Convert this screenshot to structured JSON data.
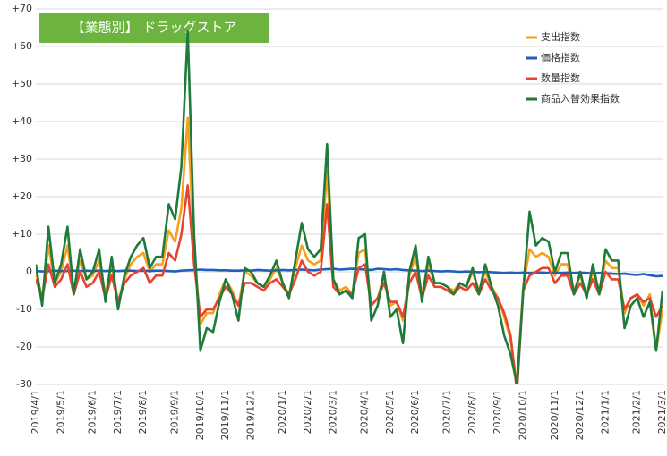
{
  "chart_data": {
    "type": "line",
    "title": "【業態別】 ドラッグストア",
    "categories": [
      "2019/4/1",
      null,
      null,
      null,
      "2019/5/1",
      null,
      null,
      null,
      null,
      "2019/6/1",
      null,
      null,
      null,
      "2019/7/1",
      null,
      null,
      null,
      "2019/8/1",
      null,
      null,
      null,
      null,
      "2019/9/1",
      null,
      null,
      null,
      "2019/10/1",
      null,
      null,
      null,
      "2019/11/1",
      null,
      null,
      null,
      "2019/12/1",
      null,
      null,
      null,
      null,
      "2020/1/1",
      null,
      null,
      null,
      "2020/2/1",
      null,
      null,
      null,
      "2020/3/1",
      null,
      null,
      null,
      null,
      "2020/4/1",
      null,
      null,
      null,
      "2020/5/1",
      null,
      null,
      null,
      "2020/6/1",
      null,
      null,
      null,
      null,
      "2020/7/1",
      null,
      null,
      null,
      "2020/8/1",
      null,
      null,
      null,
      "2020/9/1",
      null,
      null,
      null,
      "2020/10/1",
      null,
      null,
      null,
      null,
      "2020/11/1",
      null,
      null,
      null,
      "2020/12/1",
      null,
      null,
      null,
      "2021/1/1",
      null,
      null,
      null,
      null,
      "2021/2/1",
      null,
      null,
      null,
      "2021/3/1"
    ],
    "series": [
      {
        "name": "支出指数",
        "color": "#f5a11c",
        "values": [
          0,
          -7,
          7,
          -3,
          0,
          7,
          -5,
          3,
          -2,
          -1,
          3,
          -6,
          2,
          -8,
          -2,
          2,
          4,
          5,
          0,
          2,
          2,
          11,
          8,
          17,
          41,
          6,
          -14,
          -11,
          -11,
          -6,
          -2,
          -5,
          -9,
          0,
          -1,
          -3,
          -4,
          -2,
          1,
          -3,
          -6,
          1,
          7,
          3,
          2,
          3,
          27,
          -2,
          -5,
          -4,
          -6,
          5,
          6,
          -9,
          -7,
          -1,
          -9,
          -8,
          -13,
          -1,
          4,
          -6,
          2,
          -3,
          -3,
          -4,
          -5,
          -3,
          -4,
          0,
          -5,
          0,
          -4,
          -7,
          -12,
          -18,
          -30,
          -4,
          6,
          4,
          5,
          4,
          -1,
          2,
          2,
          -5,
          -1,
          -6,
          0,
          -5,
          3,
          1,
          1,
          -11,
          -7,
          -6,
          -9,
          -6,
          -21,
          -10
        ]
      },
      {
        "name": "価格指数",
        "color": "#1f5fbf",
        "values": [
          0.2,
          0.1,
          0.2,
          0.3,
          0.2,
          0.2,
          0.3,
          0.2,
          0.3,
          0.2,
          0.3,
          0.2,
          0.3,
          0.2,
          0.3,
          0.3,
          0.2,
          0.3,
          0.2,
          0.3,
          0.3,
          0.2,
          0.1,
          0.3,
          0.4,
          0.5,
          0.6,
          0.5,
          0.5,
          0.4,
          0.4,
          0.3,
          0.3,
          0.4,
          0.3,
          0.5,
          0.4,
          0.3,
          0.4,
          0.5,
          0.4,
          0.5,
          0.6,
          0.5,
          0.4,
          0.6,
          0.7,
          0.8,
          0.6,
          0.7,
          0.8,
          0.7,
          0.6,
          0.5,
          0.8,
          0.7,
          0.6,
          0.7,
          0.5,
          0.4,
          0.3,
          0.2,
          0.3,
          0.2,
          0.1,
          0.2,
          0.1,
          0.0,
          0.1,
          0.0,
          -0.1,
          0.0,
          -0.1,
          -0.2,
          -0.3,
          -0.2,
          -0.3,
          -0.2,
          -0.3,
          -0.2,
          -0.2,
          -0.3,
          -0.2,
          -0.3,
          -0.2,
          -0.3,
          -0.2,
          -0.3,
          -0.4,
          -0.3,
          -0.4,
          -0.5,
          -0.6,
          -0.5,
          -0.7,
          -0.8,
          -0.6,
          -0.9,
          -1.2,
          -1.1
        ]
      },
      {
        "name": "数量指数",
        "color": "#e8432e",
        "values": [
          -2,
          -7,
          2,
          -4,
          -2,
          2,
          -6,
          0,
          -4,
          -3,
          0,
          -7,
          -1,
          -8,
          -3,
          -1,
          0,
          1,
          -3,
          -1,
          -1,
          5,
          3,
          10,
          23,
          2,
          -12,
          -10,
          -10,
          -7,
          -4,
          -6,
          -9,
          -3,
          -3,
          -4,
          -5,
          -3,
          -2,
          -4,
          -6,
          -2,
          3,
          0,
          -1,
          0,
          18,
          -4,
          -6,
          -5,
          -6,
          1,
          2,
          -9,
          -7,
          -3,
          -8,
          -8,
          -12,
          -3,
          0,
          -7,
          -1,
          -4,
          -4,
          -5,
          -6,
          -4,
          -5,
          -3,
          -6,
          -2,
          -5,
          -7,
          -11,
          -17,
          -32,
          -5,
          -1,
          0,
          1,
          1,
          -3,
          -1,
          -1,
          -6,
          -3,
          -6,
          -2,
          -6,
          0,
          -2,
          -2,
          -10,
          -7,
          -6,
          -8,
          -7,
          -12,
          -9
        ]
      },
      {
        "name": "商品入替効果指数",
        "color": "#1e7b3c",
        "values": [
          2,
          -9,
          12,
          -3,
          2,
          12,
          -6,
          6,
          -2,
          0,
          6,
          -8,
          4,
          -10,
          -1,
          4,
          7,
          9,
          1,
          4,
          4,
          18,
          14,
          28,
          64,
          10,
          -21,
          -15,
          -16,
          -8,
          -2,
          -6,
          -13,
          1,
          0,
          -3,
          -4,
          -1,
          3,
          -3,
          -7,
          3,
          13,
          6,
          4,
          6,
          34,
          -2,
          -6,
          -5,
          -7,
          9,
          10,
          -13,
          -9,
          0,
          -12,
          -10,
          -19,
          0,
          7,
          -8,
          4,
          -3,
          -3,
          -4,
          -6,
          -3,
          -4,
          1,
          -6,
          2,
          -4,
          -9,
          -17,
          -22,
          -30,
          -5,
          16,
          7,
          9,
          8,
          0,
          5,
          5,
          -6,
          0,
          -7,
          2,
          -6,
          6,
          3,
          3,
          -15,
          -9,
          -7,
          -12,
          -8,
          -21,
          -5
        ]
      }
    ],
    "ylim": [
      -30,
      70
    ],
    "yticks": [
      {
        "value": 70,
        "label": "+70"
      },
      {
        "value": 60,
        "label": "+60"
      },
      {
        "value": 50,
        "label": "+50"
      },
      {
        "value": 40,
        "label": "+40"
      },
      {
        "value": 30,
        "label": "+30"
      },
      {
        "value": 20,
        "label": "+20"
      },
      {
        "value": 10,
        "label": "+10"
      },
      0,
      -10,
      -20,
      -30
    ],
    "grid": true,
    "legend": "top-right"
  }
}
